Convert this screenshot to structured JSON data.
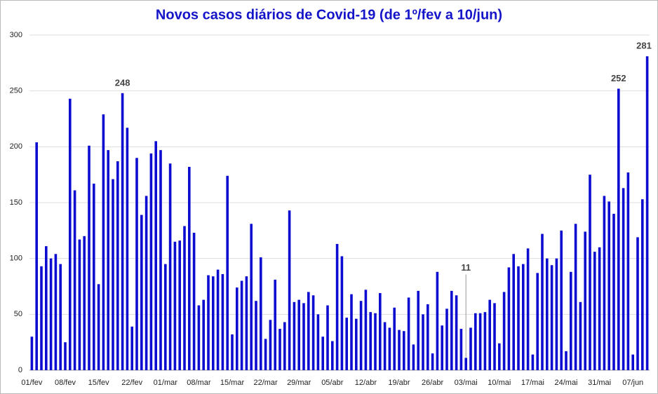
{
  "chart_data": {
    "type": "bar",
    "title": "Novos casos diários de Covid-19 (de 1º/fev a 10/jun)",
    "categories": [
      "01/fev",
      null,
      null,
      null,
      null,
      null,
      null,
      "08/fev",
      null,
      null,
      null,
      null,
      null,
      null,
      "15/fev",
      null,
      null,
      null,
      null,
      null,
      null,
      "22/fev",
      null,
      null,
      null,
      null,
      null,
      null,
      "01/mar",
      null,
      null,
      null,
      null,
      null,
      null,
      "08/mar",
      null,
      null,
      null,
      null,
      null,
      null,
      "15/mar",
      null,
      null,
      null,
      null,
      null,
      null,
      "22/mar",
      null,
      null,
      null,
      null,
      null,
      null,
      "29/mar",
      null,
      null,
      null,
      null,
      null,
      null,
      "05/abr",
      null,
      null,
      null,
      null,
      null,
      null,
      "12/abr",
      null,
      null,
      null,
      null,
      null,
      null,
      "19/abr",
      null,
      null,
      null,
      null,
      null,
      null,
      "26/abr",
      null,
      null,
      null,
      null,
      null,
      null,
      "03/mai",
      null,
      null,
      null,
      null,
      null,
      null,
      "10/mai",
      null,
      null,
      null,
      null,
      null,
      null,
      "17/mai",
      null,
      null,
      null,
      null,
      null,
      null,
      "24/mai",
      null,
      null,
      null,
      null,
      null,
      null,
      "31/mai",
      null,
      null,
      null,
      null,
      null,
      null,
      "07/jun",
      null,
      null,
      null
    ],
    "values": [
      30,
      204,
      93,
      111,
      100,
      104,
      95,
      25,
      243,
      161,
      117,
      120,
      201,
      167,
      77,
      229,
      197,
      171,
      187,
      248,
      217,
      39,
      190,
      139,
      156,
      194,
      205,
      197,
      95,
      185,
      115,
      116,
      129,
      182,
      123,
      58,
      63,
      85,
      84,
      90,
      86,
      174,
      32,
      74,
      80,
      84,
      131,
      62,
      101,
      28,
      45,
      81,
      37,
      43,
      143,
      61,
      63,
      60,
      70,
      67,
      50,
      30,
      58,
      26,
      113,
      102,
      47,
      68,
      46,
      62,
      72,
      52,
      51,
      69,
      43,
      38,
      56,
      36,
      35,
      65,
      23,
      71,
      50,
      59,
      15,
      88,
      40,
      55,
      71,
      67,
      37,
      11,
      38,
      51,
      51,
      52,
      63,
      60,
      24,
      70,
      92,
      104,
      93,
      95,
      109,
      14,
      87,
      122,
      100,
      94,
      100,
      125,
      17,
      88,
      131,
      61,
      124,
      175,
      106,
      110,
      156,
      151,
      140,
      252,
      163,
      177,
      14,
      119,
      153,
      281
    ],
    "value_labels": [
      null,
      null,
      null,
      null,
      null,
      null,
      null,
      null,
      null,
      null,
      null,
      null,
      null,
      null,
      null,
      null,
      null,
      null,
      null,
      "248",
      null,
      null,
      null,
      null,
      null,
      null,
      null,
      null,
      null,
      null,
      null,
      null,
      null,
      null,
      null,
      null,
      null,
      null,
      null,
      null,
      null,
      null,
      null,
      null,
      null,
      null,
      null,
      null,
      null,
      null,
      null,
      null,
      null,
      null,
      null,
      null,
      null,
      null,
      null,
      null,
      null,
      null,
      null,
      null,
      null,
      null,
      null,
      null,
      null,
      null,
      null,
      null,
      null,
      null,
      null,
      null,
      null,
      null,
      null,
      null,
      null,
      null,
      null,
      null,
      null,
      null,
      null,
      null,
      null,
      null,
      null,
      "11",
      null,
      null,
      null,
      null,
      null,
      null,
      null,
      null,
      null,
      null,
      null,
      null,
      null,
      null,
      null,
      null,
      null,
      null,
      null,
      null,
      null,
      null,
      null,
      null,
      null,
      null,
      null,
      null,
      null,
      null,
      null,
      "252",
      null,
      null,
      null,
      null,
      null,
      "281"
    ],
    "color": "#0c0cd0",
    "ylim": [
      0,
      300
    ],
    "yticks": [
      0,
      50,
      100,
      150,
      200,
      250,
      300
    ],
    "grid": true
  }
}
